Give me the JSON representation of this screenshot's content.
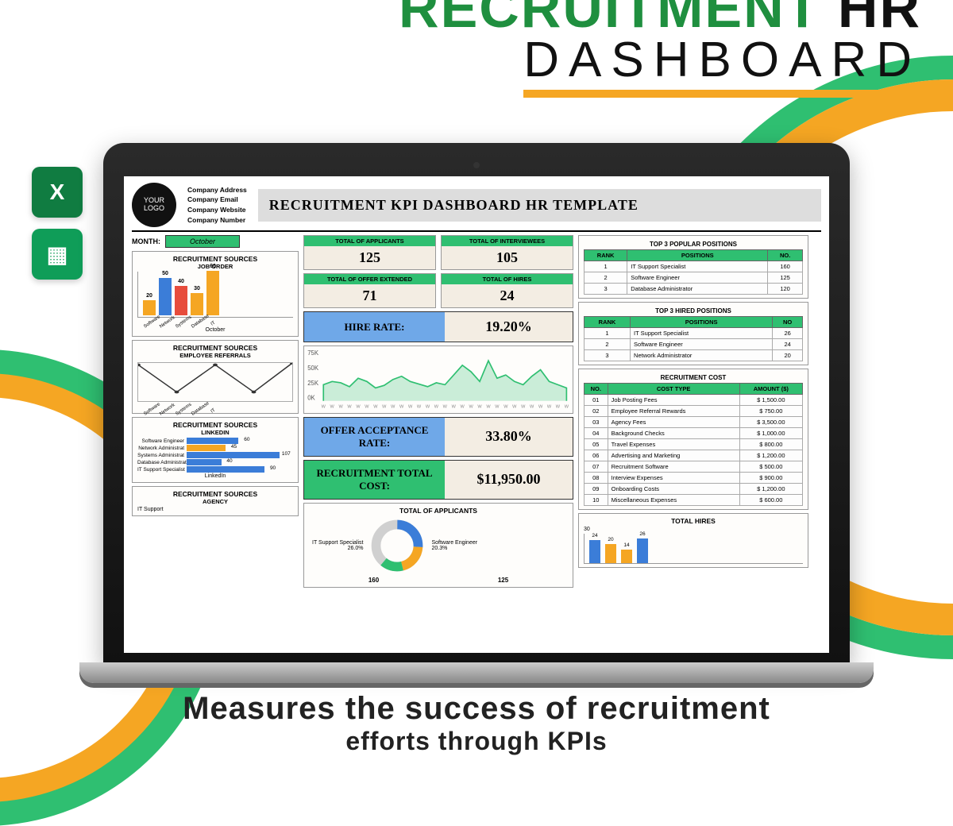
{
  "promo": {
    "title_word1": "RECRUITMENT",
    "title_word2": "HR",
    "title_line2": "DASHBOARD",
    "tagline1": "Measures the success of recruitment",
    "tagline2": "efforts through KPIs"
  },
  "icons": {
    "excel": "X",
    "sheets": "▦"
  },
  "header": {
    "logo_line1": "YOUR",
    "logo_line2": "LOGO",
    "company": [
      "Company Address",
      "Company Email",
      "Company Website",
      "Company Number"
    ],
    "dash_title": "RECRUITMENT KPI DASHBOARD HR TEMPLATE"
  },
  "month": {
    "label": "MONTH:",
    "value": "October"
  },
  "kpis": {
    "applicants": {
      "label": "TOTAL OF APPLICANTS",
      "value": "125"
    },
    "interviewees": {
      "label": "TOTAL OF INTERVIEWEES",
      "value": "105"
    },
    "offers": {
      "label": "TOTAL OF OFFER EXTENDED",
      "value": "71"
    },
    "hires": {
      "label": "TOTAL OF HIRES",
      "value": "24"
    },
    "hire_rate": {
      "label": "HIRE RATE:",
      "value": "19.20%"
    },
    "offer_accept": {
      "label": "OFFER ACCEPTANCE RATE:",
      "value": "33.80%"
    },
    "total_cost": {
      "label": "RECRUITMENT TOTAL COST:",
      "value": "$11,950.00"
    }
  },
  "sources_job_order": {
    "title": "RECRUITMENT SOURCES",
    "sub": "JOB ORDER",
    "ymax": 60,
    "categories": [
      "Software",
      "Network",
      "Systems",
      "Database",
      "IT"
    ],
    "values": [
      20,
      50,
      40,
      30,
      60
    ],
    "colors": [
      "#f5a623",
      "#3b7dd8",
      "#e74c3c",
      "#f5a623",
      "#f5a623"
    ],
    "footer": "October",
    "ylabel": "Job Order"
  },
  "sources_referrals": {
    "title": "RECRUITMENT SOURCES",
    "sub": "EMPLOYEE REFERRALS",
    "categories": [
      "Software",
      "Network",
      "Systems",
      "Database",
      "IT"
    ],
    "points": [
      40,
      10,
      40,
      10,
      42
    ],
    "ymax": 40,
    "ylabel": "Employee Referrals"
  },
  "sources_linkedin": {
    "title": "RECRUITMENT SOURCES",
    "sub": "LINKEDIN",
    "rows": [
      {
        "label": "Software Engineer",
        "v": 60,
        "c": "#3b7dd8"
      },
      {
        "label": "Network Administrat",
        "v": 45,
        "c": "#f5a623"
      },
      {
        "label": "Systems Administrat",
        "v": 107,
        "c": "#3b7dd8"
      },
      {
        "label": "Database Administrat",
        "v": 40,
        "c": "#3b7dd8"
      },
      {
        "label": "IT Support Specialist",
        "v": 90,
        "c": "#3b7dd8"
      }
    ],
    "footer": "LinkedIn"
  },
  "sources_agency": {
    "title": "RECRUITMENT SOURCES",
    "sub": "AGENCY",
    "row_label": "IT Support"
  },
  "spark": {
    "ylabels": [
      "75K",
      "50K",
      "25K",
      "0K"
    ],
    "xlabels": [
      "4",
      "5",
      "6",
      "7",
      "8",
      "9",
      "10",
      "11",
      "12",
      "13",
      "14",
      "15",
      "16",
      "17",
      "18",
      "19",
      "20",
      "21",
      "22",
      "23",
      "24",
      "25",
      "26",
      "27",
      "28",
      "29",
      "30",
      "31",
      "32"
    ],
    "points": [
      25,
      30,
      28,
      22,
      35,
      30,
      20,
      24,
      33,
      38,
      30,
      26,
      22,
      28,
      25,
      40,
      55,
      45,
      30,
      62,
      35,
      40,
      30,
      25,
      38,
      48,
      30,
      25,
      20
    ],
    "ymax": 75,
    "color": "#2fbf71"
  },
  "popular_positions": {
    "title": "TOP 3 POPULAR POSITIONS",
    "cols": [
      "RANK",
      "POSITIONS",
      "NO."
    ],
    "rows": [
      [
        "1",
        "IT Support Specialist",
        "160"
      ],
      [
        "2",
        "Software Engineer",
        "125"
      ],
      [
        "3",
        "Database Administrator",
        "120"
      ]
    ]
  },
  "hired_positions": {
    "title": "TOP 3 HIRED POSITIONS",
    "cols": [
      "RANK",
      "POSITIONS",
      "NO"
    ],
    "rows": [
      [
        "1",
        "IT Support Specialist",
        "26"
      ],
      [
        "2",
        "Software Engineer",
        "24"
      ],
      [
        "3",
        "Network Administrator",
        "20"
      ]
    ]
  },
  "costs": {
    "title": "RECRUITMENT COST",
    "cols": [
      "NO.",
      "COST TYPE",
      "AMOUNT ($)"
    ],
    "rows": [
      [
        "01",
        "Job Posting Fees",
        "$    1,500.00"
      ],
      [
        "02",
        "Employee Referral Rewards",
        "$       750.00"
      ],
      [
        "03",
        "Agency Fees",
        "$    3,500.00"
      ],
      [
        "04",
        "Background Checks",
        "$    1,000.00"
      ],
      [
        "05",
        "Travel Expenses",
        "$       800.00"
      ],
      [
        "06",
        "Advertising and Marketing",
        "$    1,200.00"
      ],
      [
        "07",
        "Recruitment Software",
        "$       500.00"
      ],
      [
        "08",
        "Interview Expenses",
        "$       900.00"
      ],
      [
        "09",
        "Onboarding Costs",
        "$    1,200.00"
      ],
      [
        "10",
        "Miscellaneous Expenses",
        "$       600.00"
      ]
    ]
  },
  "donut": {
    "title": "TOTAL OF APPLICANTS",
    "left_label": "IT Support Specialist",
    "left_pct": "26.0%",
    "left_val": "160",
    "right_label": "Software Engineer",
    "right_pct": "20.3%",
    "right_val": "125",
    "colors": [
      "#3b7dd8",
      "#f5a623",
      "#2fbf71",
      "#d0d0d0"
    ]
  },
  "total_hires_chart": {
    "title": "TOTAL HIRES",
    "ymax": 30,
    "values": [
      24,
      20,
      14,
      26
    ],
    "colors": [
      "#3b7dd8",
      "#f5a623",
      "#f5a623",
      "#3b7dd8"
    ]
  }
}
